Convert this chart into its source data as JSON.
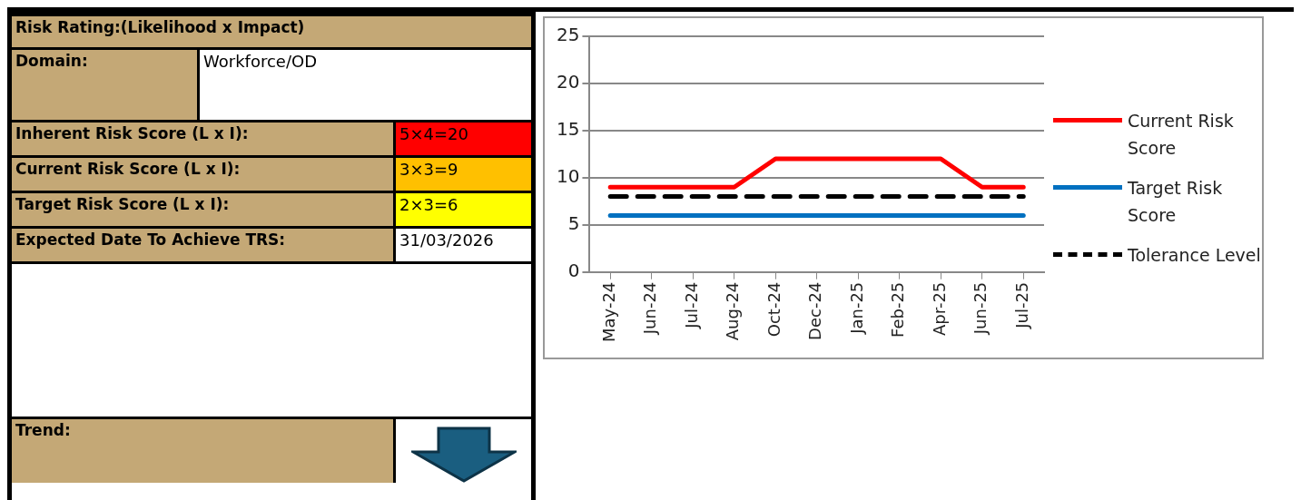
{
  "chart_data": [
    {
      "type": "other",
      "annotations": [
        "Risk Rating:(Likelihood x Impact)",
        "Domain:",
        "Workforce/OD",
        "Inherent Risk Score (L x I):",
        "5×4=20",
        "Current Risk Score (L x I):",
        "3×3=9",
        "Target Risk Score (L x I):",
        "2×3=6",
        "Expected Date To Achieve TRS:",
        "31/03/2026",
        "Trend:"
      ]
    },
    {
      "type": "line",
      "categories": [
        "May-24",
        "Jun-24",
        "Jul-24",
        "Aug-24",
        "Oct-24",
        "Dec-24",
        "Jan-25",
        "Feb-25",
        "Apr-25",
        "Jun-25",
        "Jul-25"
      ],
      "series": [
        {
          "name": "Current Risk Score",
          "color": "#ff0000",
          "values": [
            9,
            9,
            9,
            9,
            12,
            12,
            12,
            12,
            12,
            9,
            9
          ]
        },
        {
          "name": "Target Risk Score",
          "color": "#0070c0",
          "values": [
            6,
            6,
            6,
            6,
            6,
            6,
            6,
            6,
            6,
            6,
            6
          ]
        },
        {
          "name": "Tolerance Level",
          "color": "#000000",
          "line_style": "dashed",
          "values": [
            8,
            8,
            8,
            8,
            8,
            8,
            8,
            8,
            8,
            8,
            8
          ]
        }
      ],
      "ylim": [
        0,
        25
      ],
      "yticks": [
        0,
        5,
        10,
        15,
        20,
        25
      ],
      "grid": "y",
      "legend": "right",
      "marker": "none"
    }
  ]
}
